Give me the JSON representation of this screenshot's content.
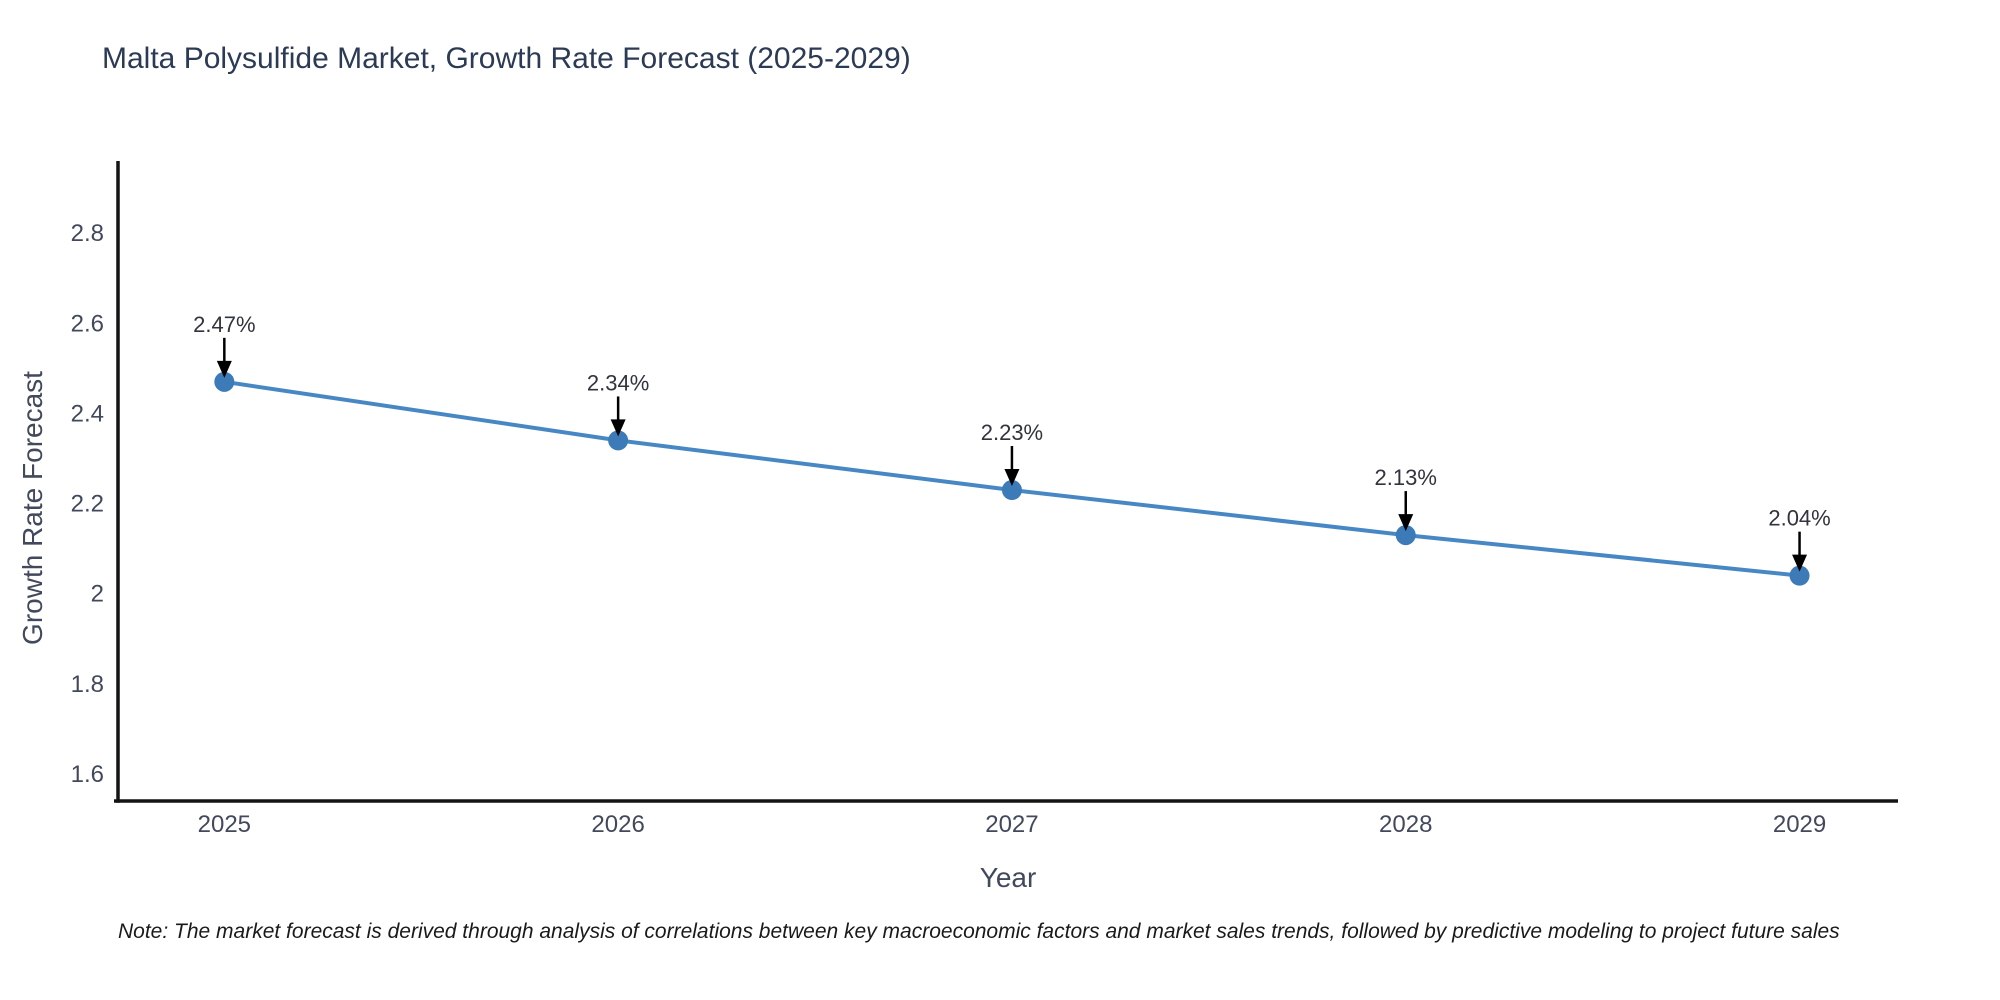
{
  "title": "Malta Polysulfide Market, Growth Rate Forecast (2025-2029)",
  "note": "Note: The market forecast is derived through analysis of correlations between key macroeconomic factors and market sales trends, followed by predictive modeling to project future sales",
  "chart_data": {
    "type": "line",
    "title": "Malta Polysulfide Market, Growth Rate Forecast (2025-2029)",
    "xlabel": "Year",
    "ylabel": "Growth Rate Forecast",
    "x": [
      2025,
      2026,
      2027,
      2028,
      2029
    ],
    "series": [
      {
        "name": "Growth Rate Forecast",
        "values": [
          2.47,
          2.34,
          2.23,
          2.13,
          2.04
        ]
      }
    ],
    "point_labels": [
      "2.47%",
      "2.34%",
      "2.23%",
      "2.13%",
      "2.04%"
    ],
    "x_tick_labels": [
      "2025",
      "2026",
      "2027",
      "2028",
      "2029"
    ],
    "y_tick_values": [
      1.6,
      1.8,
      2.0,
      2.2,
      2.4,
      2.6,
      2.8
    ],
    "y_tick_labels": [
      "1.6",
      "1.8",
      "2",
      "2.2",
      "2.4",
      "2.6",
      "2.8"
    ],
    "xlim": [
      2024.73,
      2029.25
    ],
    "ylim": [
      1.54,
      2.96
    ],
    "grid": false,
    "legend": "none",
    "colors": {
      "line": "#4788c4",
      "marker": "#3d7ab8",
      "axis": "#141414",
      "arrow": "#000000",
      "annotation_text": "#30343c",
      "tick_text": "#42495c",
      "title_text": "#2b3a55",
      "background": "#ffffff"
    }
  }
}
